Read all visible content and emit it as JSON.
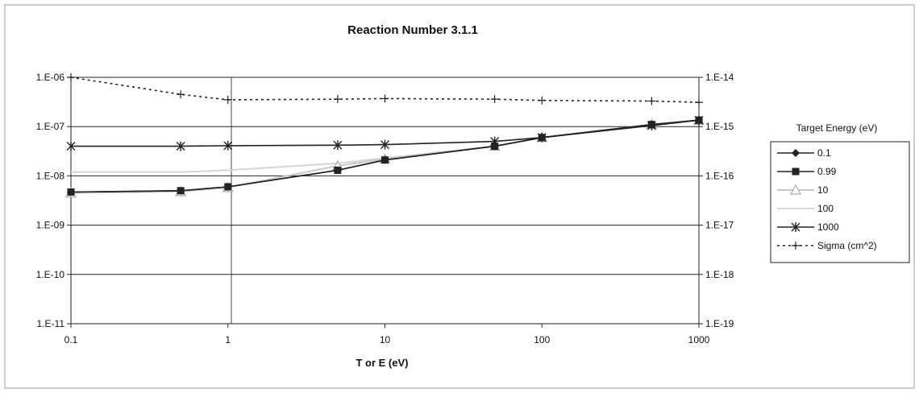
{
  "chart_data": {
    "type": "line",
    "title": "Reaction Number 3.1.1",
    "xlabel": "T or E (eV)",
    "x_scale": "log",
    "y_scale": "log",
    "y2_scale": "log",
    "xlim": [
      0.1,
      1000
    ],
    "ylim": [
      1e-11,
      1e-06
    ],
    "y2lim": [
      1e-19,
      1e-14
    ],
    "x_tick_labels": [
      "0.1",
      "1",
      "10",
      "100",
      "1000"
    ],
    "y_tick_labels": [
      "1.E-06",
      "1.E-07",
      "1.E-08",
      "1.E-09",
      "1.E-10",
      "1.E-11"
    ],
    "y2_tick_labels": [
      "1.E-14",
      "1.E-15",
      "1.E-16",
      "1.E-17",
      "1.E-18",
      "1.E-19"
    ],
    "grid": "horizontal major gridlines",
    "legend_title": "Target Energy (eV)",
    "legend_position": "right",
    "series": [
      {
        "name": "0.1",
        "axis": "left",
        "color": "#222222",
        "marker": "diamond",
        "line": "solid",
        "x": [
          0.1,
          0.5,
          1,
          5,
          10,
          50,
          100,
          500,
          1000
        ],
        "y": [
          4.7e-09,
          5e-09,
          6e-09,
          1.3e-08,
          2.1e-08,
          4e-08,
          6e-08,
          1.1e-07,
          1.35e-07
        ]
      },
      {
        "name": "0.99",
        "axis": "left",
        "color": "#222222",
        "marker": "square",
        "line": "solid",
        "x": [
          0.1,
          0.5,
          1,
          5,
          10,
          50,
          100,
          500,
          1000
        ],
        "y": [
          4.7e-09,
          5e-09,
          6e-09,
          1.3e-08,
          2.1e-08,
          4e-08,
          6e-08,
          1.1e-07,
          1.35e-07
        ]
      },
      {
        "name": "10",
        "axis": "left",
        "color": "#c8c8c8",
        "marker": "triangle",
        "line": "solid",
        "x": [
          0.1,
          0.5,
          1,
          5,
          10,
          50,
          100,
          500,
          1000
        ],
        "y": [
          4.5e-09,
          4.8e-09,
          5.8e-09,
          1.6e-08,
          2.2e-08,
          4e-08,
          6e-08,
          1.1e-07,
          1.35e-07
        ]
      },
      {
        "name": "100",
        "axis": "left",
        "color": "#d4d4d4",
        "marker": "none",
        "line": "solid",
        "x": [
          0.1,
          0.5,
          1,
          5,
          10,
          50,
          100,
          500,
          1000
        ],
        "y": [
          1.2e-08,
          1.2e-08,
          1.3e-08,
          1.8e-08,
          2.3e-08,
          4e-08,
          6e-08,
          1.1e-07,
          1.35e-07
        ]
      },
      {
        "name": "1000",
        "axis": "left",
        "color": "#222222",
        "marker": "asterisk",
        "line": "solid",
        "x": [
          0.1,
          0.5,
          1,
          5,
          10,
          50,
          100,
          500,
          1000
        ],
        "y": [
          4e-08,
          4e-08,
          4.1e-08,
          4.2e-08,
          4.3e-08,
          5e-08,
          6e-08,
          1.05e-07,
          1.35e-07
        ]
      },
      {
        "name": "Sigma (cm^2)",
        "axis": "right",
        "color": "#222222",
        "marker": "plus",
        "line": "dotted",
        "x": [
          0.1,
          0.5,
          1,
          5,
          10,
          50,
          100,
          500,
          1000
        ],
        "y": [
          1e-14,
          4.5e-15,
          3.5e-15,
          3.6e-15,
          3.7e-15,
          3.6e-15,
          3.4e-15,
          3.3e-15,
          3.1e-15
        ]
      }
    ]
  }
}
